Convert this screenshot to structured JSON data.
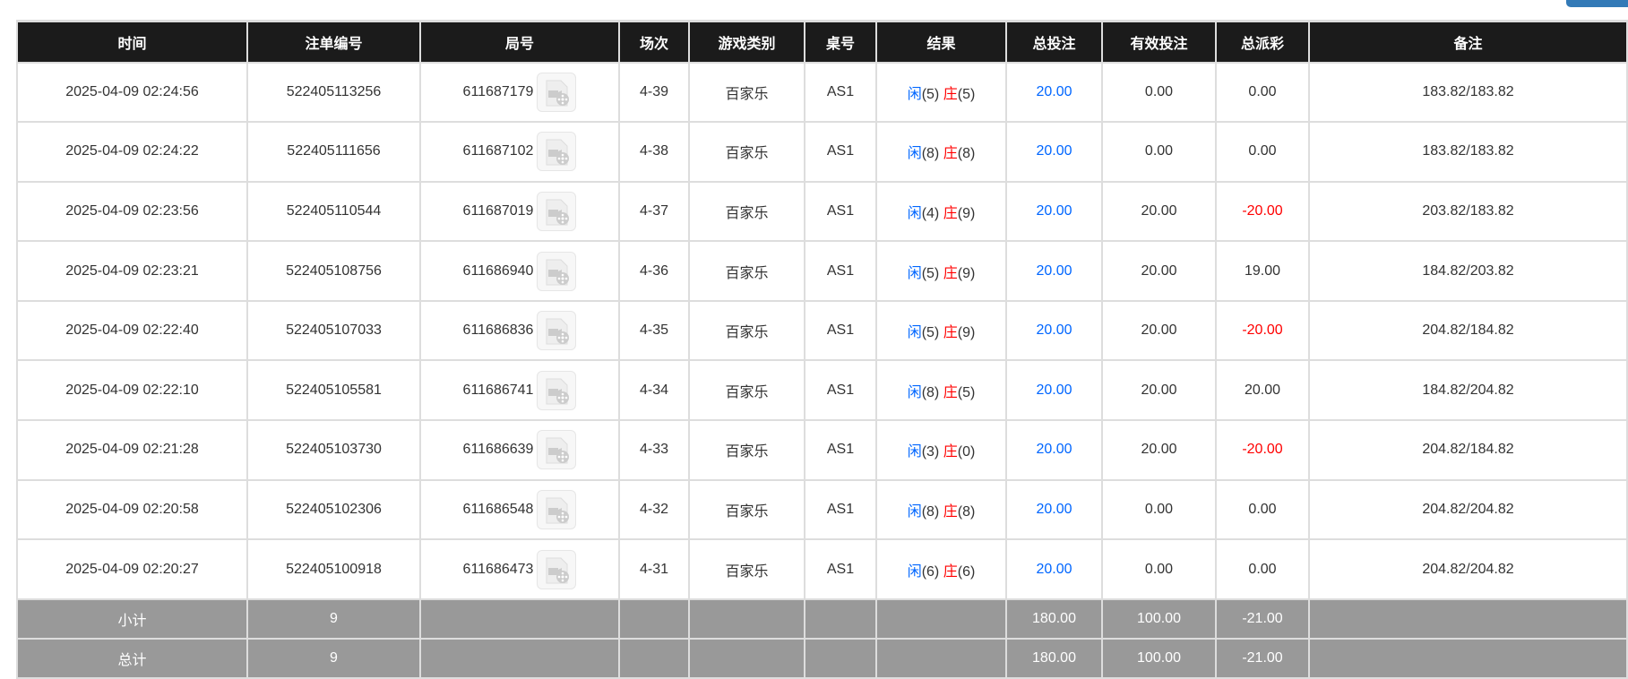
{
  "headers": [
    "时间",
    "注单编号",
    "局号",
    "场次",
    "游戏类别",
    "桌号",
    "结果",
    "总投注",
    "有效投注",
    "总派彩",
    "备注"
  ],
  "player_label": "闲",
  "banker_label": "庄",
  "rows": [
    {
      "time": "2025-04-09 02:24:56",
      "bet_id": "522405113256",
      "round": "611687179",
      "shoe": "4-39",
      "game": "百家乐",
      "table": "AS1",
      "p": "(5)",
      "b": "(5)",
      "total": "20.00",
      "valid": "0.00",
      "payout": "0.00",
      "neg": false,
      "note": "183.82/183.82"
    },
    {
      "time": "2025-04-09 02:24:22",
      "bet_id": "522405111656",
      "round": "611687102",
      "shoe": "4-38",
      "game": "百家乐",
      "table": "AS1",
      "p": "(8)",
      "b": "(8)",
      "total": "20.00",
      "valid": "0.00",
      "payout": "0.00",
      "neg": false,
      "note": "183.82/183.82"
    },
    {
      "time": "2025-04-09 02:23:56",
      "bet_id": "522405110544",
      "round": "611687019",
      "shoe": "4-37",
      "game": "百家乐",
      "table": "AS1",
      "p": "(4)",
      "b": "(9)",
      "total": "20.00",
      "valid": "20.00",
      "payout": "-20.00",
      "neg": true,
      "note": "203.82/183.82"
    },
    {
      "time": "2025-04-09 02:23:21",
      "bet_id": "522405108756",
      "round": "611686940",
      "shoe": "4-36",
      "game": "百家乐",
      "table": "AS1",
      "p": "(5)",
      "b": "(9)",
      "total": "20.00",
      "valid": "20.00",
      "payout": "19.00",
      "neg": false,
      "note": "184.82/203.82"
    },
    {
      "time": "2025-04-09 02:22:40",
      "bet_id": "522405107033",
      "round": "611686836",
      "shoe": "4-35",
      "game": "百家乐",
      "table": "AS1",
      "p": "(5)",
      "b": "(9)",
      "total": "20.00",
      "valid": "20.00",
      "payout": "-20.00",
      "neg": true,
      "note": "204.82/184.82"
    },
    {
      "time": "2025-04-09 02:22:10",
      "bet_id": "522405105581",
      "round": "611686741",
      "shoe": "4-34",
      "game": "百家乐",
      "table": "AS1",
      "p": "(8)",
      "b": "(5)",
      "total": "20.00",
      "valid": "20.00",
      "payout": "20.00",
      "neg": false,
      "note": "184.82/204.82"
    },
    {
      "time": "2025-04-09 02:21:28",
      "bet_id": "522405103730",
      "round": "611686639",
      "shoe": "4-33",
      "game": "百家乐",
      "table": "AS1",
      "p": "(3)",
      "b": "(0)",
      "total": "20.00",
      "valid": "20.00",
      "payout": "-20.00",
      "neg": true,
      "note": "204.82/184.82"
    },
    {
      "time": "2025-04-09 02:20:58",
      "bet_id": "522405102306",
      "round": "611686548",
      "shoe": "4-32",
      "game": "百家乐",
      "table": "AS1",
      "p": "(8)",
      "b": "(8)",
      "total": "20.00",
      "valid": "0.00",
      "payout": "0.00",
      "neg": false,
      "note": "204.82/204.82"
    },
    {
      "time": "2025-04-09 02:20:27",
      "bet_id": "522405100918",
      "round": "611686473",
      "shoe": "4-31",
      "game": "百家乐",
      "table": "AS1",
      "p": "(6)",
      "b": "(6)",
      "total": "20.00",
      "valid": "0.00",
      "payout": "0.00",
      "neg": false,
      "note": "204.82/204.82"
    }
  ],
  "summary": [
    {
      "label": "小计",
      "count": "9",
      "total": "180.00",
      "valid": "100.00",
      "payout": "-21.00"
    },
    {
      "label": "总计",
      "count": "9",
      "total": "180.00",
      "valid": "100.00",
      "payout": "-21.00"
    }
  ],
  "colors": {
    "header_bg": "#1b1b1b",
    "summary_bg": "#999999",
    "blue": "#0066ff",
    "red": "#ff0000",
    "button": "#337ab7"
  }
}
